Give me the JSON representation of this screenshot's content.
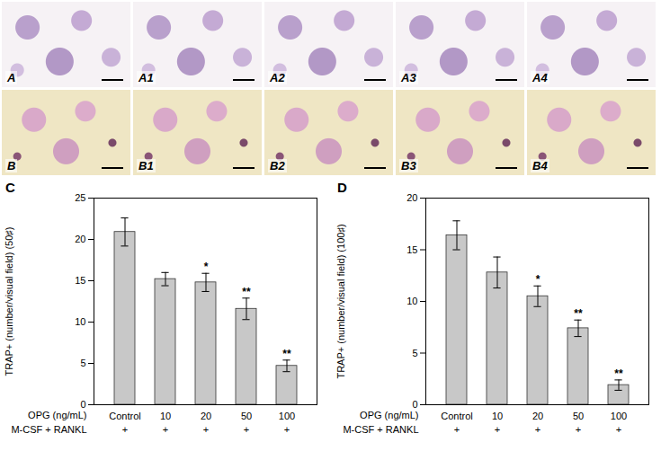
{
  "image_panels": [
    [
      "A",
      "A1",
      "A2",
      "A3",
      "A4"
    ],
    [
      "B",
      "B1",
      "B2",
      "B3",
      "B4"
    ]
  ],
  "chart_data": [
    {
      "type": "bar",
      "panel": "C",
      "categories": [
        "Control",
        "10",
        "20",
        "50",
        "100"
      ],
      "values": [
        20.9,
        15.2,
        14.8,
        11.6,
        4.7
      ],
      "errors": [
        1.7,
        0.8,
        1.1,
        1.3,
        0.7
      ],
      "significance": [
        null,
        null,
        "*",
        "**",
        "**"
      ],
      "x_label": "OPG (ng/mL)",
      "treatment_label": "M-CSF + RANKL",
      "treatment": [
        "+",
        "+",
        "+",
        "+",
        "+"
      ],
      "y_label": "TRAP+ (number/visual field) (50♯)",
      "color": "#c8c8c8",
      "ylim": [
        0,
        25
      ],
      "yticks": [
        0,
        5,
        10,
        15,
        20,
        25
      ],
      "grid": false
    },
    {
      "type": "bar",
      "panel": "D",
      "categories": [
        "Control",
        "10",
        "20",
        "50",
        "100"
      ],
      "values": [
        16.4,
        12.8,
        10.5,
        7.4,
        1.9
      ],
      "errors": [
        1.4,
        1.5,
        1.0,
        0.8,
        0.5
      ],
      "significance": [
        null,
        null,
        "*",
        "**",
        "**"
      ],
      "x_label": "OPG (ng/mL)",
      "treatment_label": "M-CSF + RANKL",
      "treatment": [
        "+",
        "+",
        "+",
        "+",
        "+"
      ],
      "y_label": "TRAP+ (number/visual field) (100♯)",
      "color": "#c8c8c8",
      "ylim": [
        0,
        20
      ],
      "yticks": [
        0,
        5,
        10,
        15,
        20
      ],
      "grid": false
    }
  ]
}
